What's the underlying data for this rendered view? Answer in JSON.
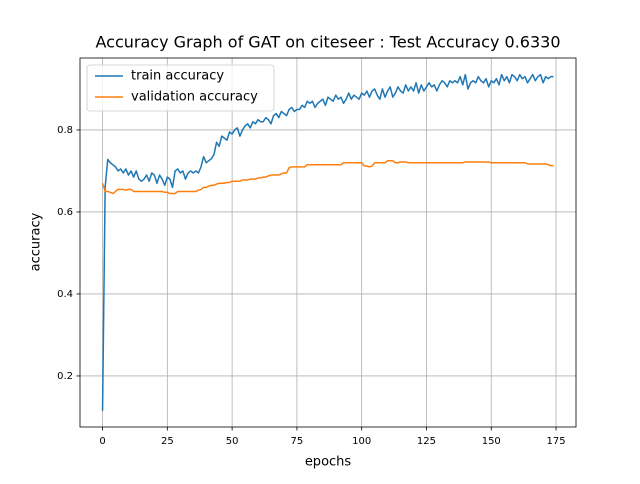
{
  "chart_data": {
    "type": "line",
    "title": "Accuracy Graph of GAT on citeseer : Test Accuracy 0.6330",
    "x_label": "epochs",
    "y_label": "accuracy",
    "x": [
      0,
      1,
      2,
      3,
      4,
      5,
      6,
      7,
      8,
      9,
      10,
      11,
      12,
      13,
      14,
      15,
      16,
      17,
      18,
      19,
      20,
      21,
      22,
      23,
      24,
      25,
      26,
      27,
      28,
      29,
      30,
      31,
      32,
      33,
      34,
      35,
      36,
      37,
      38,
      39,
      40,
      41,
      42,
      43,
      44,
      45,
      46,
      47,
      48,
      49,
      50,
      51,
      52,
      53,
      54,
      55,
      56,
      57,
      58,
      59,
      60,
      61,
      62,
      63,
      64,
      65,
      66,
      67,
      68,
      69,
      70,
      71,
      72,
      73,
      74,
      75,
      76,
      77,
      78,
      79,
      80,
      81,
      82,
      83,
      84,
      85,
      86,
      87,
      88,
      89,
      90,
      91,
      92,
      93,
      94,
      95,
      96,
      97,
      98,
      99,
      100,
      101,
      102,
      103,
      104,
      105,
      106,
      107,
      108,
      109,
      110,
      111,
      112,
      113,
      114,
      115,
      116,
      117,
      118,
      119,
      120,
      121,
      122,
      123,
      124,
      125,
      126,
      127,
      128,
      129,
      130,
      131,
      132,
      133,
      134,
      135,
      136,
      137,
      138,
      139,
      140,
      141,
      142,
      143,
      144,
      145,
      146,
      147,
      148,
      149,
      150,
      151,
      152,
      153,
      154,
      155,
      156,
      157,
      158,
      159,
      160,
      161,
      162,
      163,
      164,
      165,
      166,
      167,
      168,
      169,
      170,
      171,
      172,
      173,
      174
    ],
    "series": [
      {
        "name": "train accuracy",
        "color": "#1f77b4",
        "values": [
          0.115,
          0.66,
          0.728,
          0.72,
          0.715,
          0.71,
          0.7,
          0.705,
          0.695,
          0.705,
          0.69,
          0.7,
          0.685,
          0.7,
          0.68,
          0.675,
          0.68,
          0.69,
          0.675,
          0.695,
          0.69,
          0.67,
          0.69,
          0.68,
          0.665,
          0.685,
          0.68,
          0.66,
          0.7,
          0.705,
          0.695,
          0.7,
          0.68,
          0.695,
          0.7,
          0.695,
          0.7,
          0.695,
          0.71,
          0.735,
          0.72,
          0.725,
          0.73,
          0.74,
          0.77,
          0.76,
          0.785,
          0.78,
          0.775,
          0.795,
          0.79,
          0.8,
          0.805,
          0.785,
          0.8,
          0.81,
          0.815,
          0.805,
          0.82,
          0.815,
          0.825,
          0.82,
          0.82,
          0.83,
          0.825,
          0.815,
          0.835,
          0.84,
          0.83,
          0.845,
          0.84,
          0.835,
          0.85,
          0.855,
          0.845,
          0.85,
          0.85,
          0.86,
          0.855,
          0.87,
          0.865,
          0.87,
          0.855,
          0.865,
          0.87,
          0.875,
          0.86,
          0.88,
          0.875,
          0.87,
          0.885,
          0.875,
          0.88,
          0.865,
          0.875,
          0.89,
          0.875,
          0.885,
          0.88,
          0.875,
          0.89,
          0.885,
          0.895,
          0.88,
          0.895,
          0.9,
          0.885,
          0.875,
          0.9,
          0.88,
          0.895,
          0.905,
          0.88,
          0.89,
          0.905,
          0.895,
          0.89,
          0.91,
          0.895,
          0.905,
          0.895,
          0.915,
          0.89,
          0.91,
          0.895,
          0.905,
          0.915,
          0.905,
          0.91,
          0.895,
          0.91,
          0.92,
          0.915,
          0.905,
          0.92,
          0.915,
          0.92,
          0.915,
          0.93,
          0.91,
          0.935,
          0.9,
          0.915,
          0.92,
          0.915,
          0.93,
          0.92,
          0.915,
          0.925,
          0.905,
          0.92,
          0.915,
          0.925,
          0.91,
          0.935,
          0.92,
          0.93,
          0.915,
          0.935,
          0.93,
          0.92,
          0.935,
          0.925,
          0.93,
          0.915,
          0.925,
          0.935,
          0.92,
          0.93,
          0.935,
          0.915,
          0.93,
          0.925,
          0.93,
          0.93
        ]
      },
      {
        "name": "validation accuracy",
        "color": "#ff7f0e",
        "values": [
          0.67,
          0.65,
          0.65,
          0.648,
          0.645,
          0.65,
          0.655,
          0.655,
          0.655,
          0.653,
          0.655,
          0.655,
          0.65,
          0.65,
          0.65,
          0.65,
          0.65,
          0.65,
          0.65,
          0.65,
          0.65,
          0.65,
          0.65,
          0.65,
          0.648,
          0.648,
          0.645,
          0.645,
          0.645,
          0.65,
          0.65,
          0.65,
          0.65,
          0.65,
          0.65,
          0.65,
          0.65,
          0.653,
          0.655,
          0.66,
          0.66,
          0.663,
          0.665,
          0.665,
          0.668,
          0.67,
          0.67,
          0.67,
          0.672,
          0.672,
          0.675,
          0.675,
          0.675,
          0.675,
          0.678,
          0.678,
          0.678,
          0.68,
          0.68,
          0.68,
          0.683,
          0.683,
          0.685,
          0.685,
          0.688,
          0.69,
          0.69,
          0.69,
          0.69,
          0.693,
          0.695,
          0.695,
          0.708,
          0.71,
          0.71,
          0.71,
          0.71,
          0.71,
          0.71,
          0.715,
          0.715,
          0.715,
          0.715,
          0.715,
          0.715,
          0.715,
          0.715,
          0.715,
          0.715,
          0.715,
          0.715,
          0.715,
          0.715,
          0.72,
          0.72,
          0.72,
          0.72,
          0.72,
          0.72,
          0.72,
          0.72,
          0.712,
          0.712,
          0.71,
          0.712,
          0.72,
          0.72,
          0.72,
          0.72,
          0.72,
          0.725,
          0.725,
          0.725,
          0.72,
          0.72,
          0.722,
          0.722,
          0.722,
          0.72,
          0.72,
          0.72,
          0.72,
          0.72,
          0.72,
          0.72,
          0.72,
          0.72,
          0.72,
          0.72,
          0.72,
          0.72,
          0.72,
          0.72,
          0.72,
          0.72,
          0.72,
          0.72,
          0.72,
          0.72,
          0.72,
          0.722,
          0.722,
          0.722,
          0.722,
          0.722,
          0.722,
          0.722,
          0.722,
          0.722,
          0.722,
          0.72,
          0.72,
          0.72,
          0.72,
          0.72,
          0.72,
          0.72,
          0.72,
          0.72,
          0.72,
          0.72,
          0.72,
          0.72,
          0.72,
          0.717,
          0.717,
          0.717,
          0.717,
          0.717,
          0.717,
          0.717,
          0.717,
          0.715,
          0.713,
          0.713
        ]
      }
    ],
    "xlim": [
      -8.7,
      182.7
    ],
    "ylim": [
      0.0755,
      0.9755
    ],
    "xticks": [
      0,
      25,
      50,
      75,
      100,
      125,
      150,
      175
    ],
    "yticks": [
      0.2,
      0.4,
      0.6,
      0.8
    ],
    "grid": true,
    "legend": "upper-left"
  }
}
